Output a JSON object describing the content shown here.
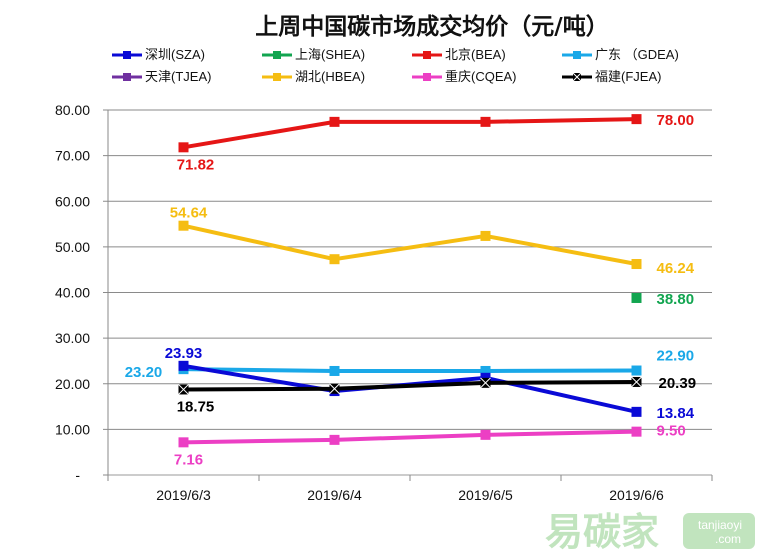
{
  "chart_data": {
    "type": "line",
    "title": "上周中国碳市场成交均价（元/吨）",
    "xlabel": "",
    "ylabel": "",
    "categories": [
      "2019/6/3",
      "2019/6/4",
      "2019/6/5",
      "2019/6/6"
    ],
    "ylim": [
      0,
      80
    ],
    "yticks": [
      0,
      10,
      20,
      30,
      40,
      50,
      60,
      70,
      80
    ],
    "ytick_labels": [
      "-",
      "10.00",
      "20.00",
      "30.00",
      "40.00",
      "50.00",
      "60.00",
      "70.00",
      "80.00"
    ],
    "grid": true,
    "legend_position": "top",
    "series": [
      {
        "name": "深圳(SZA)",
        "color": "#0a0ad6",
        "marker": "square",
        "values": [
          23.93,
          18.4,
          21.3,
          13.84
        ],
        "labels": [
          "23.93",
          null,
          null,
          "13.84"
        ]
      },
      {
        "name": "上海(SHEA)",
        "color": "#12a550",
        "marker": "square",
        "values": [
          null,
          null,
          null,
          38.8
        ],
        "labels": [
          null,
          null,
          null,
          "38.80"
        ]
      },
      {
        "name": "北京(BEA)",
        "color": "#e51616",
        "marker": "square",
        "values": [
          71.82,
          77.4,
          77.4,
          78.0
        ],
        "labels": [
          "71.82",
          null,
          null,
          "78.00"
        ]
      },
      {
        "name": "广东 （GDEA)",
        "color": "#1aa8e8",
        "marker": "square",
        "values": [
          23.2,
          22.8,
          22.8,
          22.9
        ],
        "labels": [
          "23.20",
          null,
          null,
          "22.90"
        ]
      },
      {
        "name": "天津(TJEA)",
        "color": "#7030a0",
        "marker": "square",
        "values": [
          null,
          null,
          null,
          null
        ],
        "labels": [
          null,
          null,
          null,
          null
        ]
      },
      {
        "name": "湖北(HBEA)",
        "color": "#f5bd12",
        "marker": "square",
        "values": [
          54.64,
          47.3,
          52.4,
          46.24
        ],
        "labels": [
          "54.64",
          null,
          null,
          "46.24"
        ]
      },
      {
        "name": "重庆(CQEA)",
        "color": "#ec3fc4",
        "marker": "square",
        "values": [
          7.16,
          7.7,
          8.8,
          9.5
        ],
        "labels": [
          "7.16",
          null,
          null,
          "9.50"
        ]
      },
      {
        "name": "福建(FJEA)",
        "color": "#000000",
        "marker": "x-square",
        "values": [
          18.75,
          18.9,
          20.2,
          20.39
        ],
        "labels": [
          "18.75",
          null,
          null,
          "20.39"
        ]
      }
    ]
  },
  "watermark": {
    "brand": "易碳家",
    "site_line1": "tanjiaoyi",
    "site_line2": ".com"
  }
}
